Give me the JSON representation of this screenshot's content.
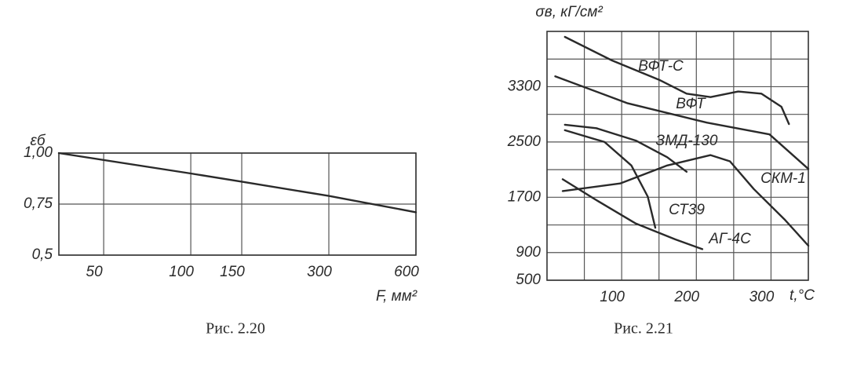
{
  "chart_data": [
    {
      "type": "line",
      "caption": "Рис. 2.20",
      "y_label": "εб",
      "x_label": "F, мм²",
      "xscale": "log",
      "xlim": [
        35,
        600
      ],
      "ylim": [
        0.5,
        1.0
      ],
      "xticks": [
        50,
        100,
        150,
        300,
        600
      ],
      "yticks": [
        {
          "value": 1.0,
          "label": "1,00"
        },
        {
          "value": 0.75,
          "label": "0,75"
        },
        {
          "value": 0.5,
          "label": "0,5"
        }
      ],
      "grid": true,
      "color": "#2a2a2a",
      "x": [
        35,
        100,
        150,
        300,
        600
      ],
      "values": [
        1.0,
        0.9,
        0.86,
        0.79,
        0.71
      ]
    },
    {
      "type": "line",
      "caption": "Рис. 2.21",
      "y_label": "σв, кГ/см²",
      "x_label": "t,°C",
      "xlim": [
        0,
        350
      ],
      "ylim": [
        500,
        4100
      ],
      "xticks": [
        100,
        200,
        300
      ],
      "yticks": [
        500,
        900,
        1700,
        2500,
        3300
      ],
      "x_minor_ticks": [
        50,
        150,
        250
      ],
      "y_minor_ticks": [
        1300,
        2100,
        2900,
        3700
      ],
      "grid": true,
      "series": [
        {
          "name": "ВФТ-С",
          "color": "#2a2a2a",
          "x": [
            24,
            87,
            150,
            187,
            219,
            256,
            287,
            314,
            324
          ],
          "values": [
            4020,
            3680,
            3400,
            3200,
            3150,
            3230,
            3200,
            3010,
            2760
          ]
        },
        {
          "name": "ВФТ",
          "color": "#2a2a2a",
          "x": [
            11,
            108,
            214,
            298,
            350
          ],
          "values": [
            3450,
            3060,
            2780,
            2610,
            2110
          ]
        },
        {
          "name": "ЗМД-130",
          "color": "#2a2a2a",
          "x": [
            24,
            66,
            119,
            161,
            187
          ],
          "values": [
            2750,
            2700,
            2520,
            2280,
            2070
          ]
        },
        {
          "name": "СКМ-1",
          "color": "#2a2a2a",
          "x": [
            21,
            98,
            161,
            219,
            245,
            277,
            319,
            350
          ],
          "values": [
            1790,
            1900,
            2160,
            2310,
            2220,
            1820,
            1370,
            1000
          ]
        },
        {
          "name": "СТ39",
          "color": "#2a2a2a",
          "x": [
            24,
            77,
            113,
            135,
            145
          ],
          "values": [
            2670,
            2500,
            2160,
            1710,
            1260
          ]
        },
        {
          "name": "АГ-4С",
          "color": "#2a2a2a",
          "x": [
            21,
            66,
            119,
            172,
            208
          ],
          "values": [
            1960,
            1660,
            1320,
            1090,
            950
          ]
        }
      ]
    }
  ]
}
